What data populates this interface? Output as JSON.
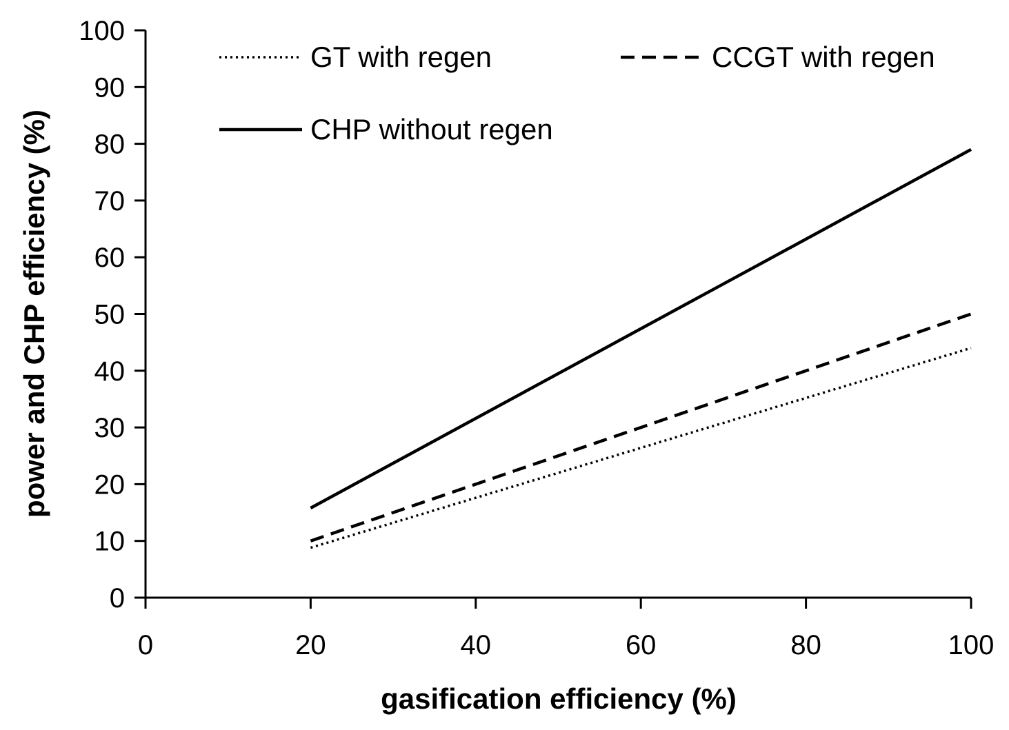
{
  "chart_data": {
    "type": "line",
    "xlabel": "gasification efficiency  (%)",
    "ylabel": "power and CHP efficiency (%)",
    "xlim": [
      0,
      100
    ],
    "ylim": [
      0,
      100
    ],
    "xticks": [
      0,
      20,
      40,
      60,
      80,
      100
    ],
    "yticks": [
      0,
      10,
      20,
      30,
      40,
      50,
      60,
      70,
      80,
      90,
      100
    ],
    "grid": false,
    "legend_position": "top",
    "series": [
      {
        "name": "GT with regen",
        "style": "dotted",
        "color": "#000000",
        "x": [
          20,
          100
        ],
        "y": [
          8.8,
          44.0
        ]
      },
      {
        "name": "CCGT with regen",
        "style": "dashed",
        "color": "#000000",
        "x": [
          20,
          100
        ],
        "y": [
          10.0,
          50.0
        ]
      },
      {
        "name": "CHP without regen",
        "style": "solid",
        "color": "#000000",
        "x": [
          20,
          100
        ],
        "y": [
          15.8,
          79.0
        ]
      }
    ]
  }
}
